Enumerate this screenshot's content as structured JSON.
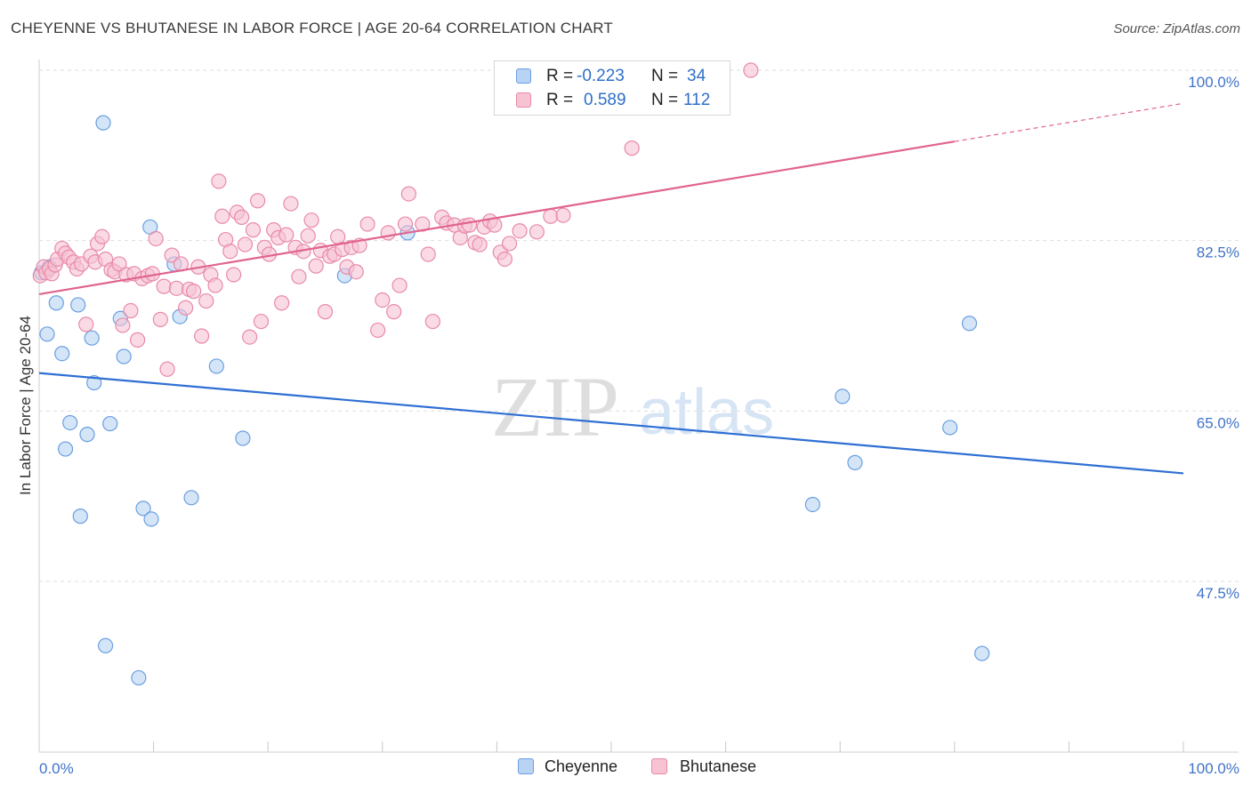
{
  "header": {
    "title": "CHEYENNE VS BHUTANESE IN LABOR FORCE | AGE 20-64 CORRELATION CHART",
    "source": "Source: ZipAtlas.com"
  },
  "watermark": {
    "zip": "ZIP",
    "atlas": "atlas"
  },
  "legend": {
    "cheyenne": {
      "r_label": "R =",
      "r_value": "-0.223",
      "n_label": "N =",
      "n_value": "34"
    },
    "bhutanese": {
      "r_label": "R =",
      "r_value": "0.589",
      "n_label": "N =",
      "n_value": "112"
    }
  },
  "bottom_legend": {
    "cheyenne": "Cheyenne",
    "bhutanese": "Bhutanese"
  },
  "colors": {
    "cheyenne_fill": "#b8d3f3",
    "cheyenne_stroke": "#6a9fe0",
    "cheyenne_line": "#2f6fd4",
    "bhutanese_fill": "#f7c3d3",
    "bhutanese_stroke": "#e88aa8",
    "bhutanese_line": "#e0648e",
    "axis_text": "#3f73c9"
  },
  "chart_data": {
    "type": "scatter",
    "title": "CHEYENNE VS BHUTANESE IN LABOR FORCE | AGE 20-64 CORRELATION CHART",
    "xlabel": "",
    "ylabel": "In Labor Force | Age 20-64",
    "xlim": [
      0,
      100
    ],
    "ylim": [
      30,
      102
    ],
    "x_tick_labels": [
      "0.0%",
      "100.0%"
    ],
    "y_ticks": [
      47.5,
      65.0,
      82.5,
      100.0
    ],
    "y_tick_labels": [
      "47.5%",
      "65.0%",
      "82.5%",
      "100.0%"
    ],
    "grid": true,
    "legend_position": "top-center",
    "series": [
      {
        "name": "Cheyenne",
        "R": -0.223,
        "N": 34,
        "trend": {
          "x0": 0,
          "y0": 68.9,
          "x1": 100,
          "y1": 58.6
        },
        "points": [
          {
            "x": 0.2,
            "y": 79.2
          },
          {
            "x": 0.7,
            "y": 72.9
          },
          {
            "x": 1.5,
            "y": 76.1
          },
          {
            "x": 2.0,
            "y": 70.9
          },
          {
            "x": 2.3,
            "y": 61.1
          },
          {
            "x": 2.7,
            "y": 63.8
          },
          {
            "x": 3.4,
            "y": 75.9
          },
          {
            "x": 3.6,
            "y": 54.2
          },
          {
            "x": 4.2,
            "y": 62.6
          },
          {
            "x": 4.6,
            "y": 72.5
          },
          {
            "x": 4.8,
            "y": 67.9
          },
          {
            "x": 5.6,
            "y": 94.6
          },
          {
            "x": 5.8,
            "y": 40.9
          },
          {
            "x": 6.2,
            "y": 63.7
          },
          {
            "x": 7.1,
            "y": 74.5
          },
          {
            "x": 7.4,
            "y": 70.6
          },
          {
            "x": 8.7,
            "y": 37.6
          },
          {
            "x": 9.1,
            "y": 55.0
          },
          {
            "x": 9.7,
            "y": 83.9
          },
          {
            "x": 9.8,
            "y": 53.9
          },
          {
            "x": 11.8,
            "y": 80.1
          },
          {
            "x": 12.3,
            "y": 74.7
          },
          {
            "x": 13.3,
            "y": 56.1
          },
          {
            "x": 15.5,
            "y": 69.6
          },
          {
            "x": 17.8,
            "y": 62.2
          },
          {
            "x": 26.7,
            "y": 78.9
          },
          {
            "x": 32.2,
            "y": 83.3
          },
          {
            "x": 0.9,
            "y": 79.8
          },
          {
            "x": 67.6,
            "y": 55.4
          },
          {
            "x": 70.2,
            "y": 66.5
          },
          {
            "x": 71.3,
            "y": 59.7
          },
          {
            "x": 79.6,
            "y": 63.3
          },
          {
            "x": 81.3,
            "y": 74.0
          },
          {
            "x": 82.4,
            "y": 40.1
          }
        ]
      },
      {
        "name": "Bhutanese",
        "R": 0.589,
        "N": 112,
        "trend": {
          "x0": 0,
          "y0": 77.0,
          "x1": 100,
          "y1": 96.6
        },
        "points": [
          {
            "x": 0.1,
            "y": 78.9
          },
          {
            "x": 0.4,
            "y": 79.8
          },
          {
            "x": 0.6,
            "y": 79.2
          },
          {
            "x": 0.9,
            "y": 79.6
          },
          {
            "x": 1.1,
            "y": 79.1
          },
          {
            "x": 1.4,
            "y": 80.0
          },
          {
            "x": 1.6,
            "y": 80.6
          },
          {
            "x": 2.0,
            "y": 81.7
          },
          {
            "x": 2.3,
            "y": 81.2
          },
          {
            "x": 2.6,
            "y": 80.8
          },
          {
            "x": 3.0,
            "y": 80.3
          },
          {
            "x": 3.3,
            "y": 79.6
          },
          {
            "x": 3.7,
            "y": 80.1
          },
          {
            "x": 4.1,
            "y": 73.9
          },
          {
            "x": 4.5,
            "y": 80.9
          },
          {
            "x": 4.9,
            "y": 80.3
          },
          {
            "x": 5.1,
            "y": 82.2
          },
          {
            "x": 5.5,
            "y": 82.9
          },
          {
            "x": 5.8,
            "y": 80.6
          },
          {
            "x": 6.3,
            "y": 79.5
          },
          {
            "x": 6.6,
            "y": 79.3
          },
          {
            "x": 7.0,
            "y": 80.1
          },
          {
            "x": 7.3,
            "y": 73.8
          },
          {
            "x": 7.6,
            "y": 79.0
          },
          {
            "x": 8.0,
            "y": 75.3
          },
          {
            "x": 8.3,
            "y": 79.1
          },
          {
            "x": 8.6,
            "y": 72.3
          },
          {
            "x": 9.0,
            "y": 78.6
          },
          {
            "x": 9.5,
            "y": 78.9
          },
          {
            "x": 9.9,
            "y": 79.1
          },
          {
            "x": 10.2,
            "y": 82.7
          },
          {
            "x": 10.6,
            "y": 74.4
          },
          {
            "x": 10.9,
            "y": 77.8
          },
          {
            "x": 11.2,
            "y": 69.3
          },
          {
            "x": 11.6,
            "y": 81.0
          },
          {
            "x": 12.0,
            "y": 77.6
          },
          {
            "x": 12.4,
            "y": 80.1
          },
          {
            "x": 12.8,
            "y": 75.6
          },
          {
            "x": 13.1,
            "y": 77.5
          },
          {
            "x": 13.5,
            "y": 77.3
          },
          {
            "x": 13.9,
            "y": 79.8
          },
          {
            "x": 14.2,
            "y": 72.7
          },
          {
            "x": 14.6,
            "y": 76.3
          },
          {
            "x": 15.0,
            "y": 79.0
          },
          {
            "x": 15.4,
            "y": 77.9
          },
          {
            "x": 15.7,
            "y": 88.6
          },
          {
            "x": 16.0,
            "y": 85.0
          },
          {
            "x": 16.3,
            "y": 82.6
          },
          {
            "x": 16.7,
            "y": 81.4
          },
          {
            "x": 17.0,
            "y": 79.0
          },
          {
            "x": 17.3,
            "y": 85.4
          },
          {
            "x": 17.7,
            "y": 84.9
          },
          {
            "x": 18.0,
            "y": 82.1
          },
          {
            "x": 18.4,
            "y": 72.6
          },
          {
            "x": 18.7,
            "y": 83.6
          },
          {
            "x": 19.1,
            "y": 86.6
          },
          {
            "x": 19.4,
            "y": 74.2
          },
          {
            "x": 19.7,
            "y": 81.8
          },
          {
            "x": 20.1,
            "y": 81.1
          },
          {
            "x": 20.5,
            "y": 83.6
          },
          {
            "x": 20.9,
            "y": 82.8
          },
          {
            "x": 21.2,
            "y": 76.1
          },
          {
            "x": 21.6,
            "y": 83.1
          },
          {
            "x": 22.0,
            "y": 86.3
          },
          {
            "x": 22.4,
            "y": 81.8
          },
          {
            "x": 22.7,
            "y": 78.8
          },
          {
            "x": 23.1,
            "y": 81.4
          },
          {
            "x": 23.5,
            "y": 83.0
          },
          {
            "x": 23.8,
            "y": 84.6
          },
          {
            "x": 24.2,
            "y": 79.9
          },
          {
            "x": 24.6,
            "y": 81.5
          },
          {
            "x": 25.0,
            "y": 75.2
          },
          {
            "x": 25.4,
            "y": 80.9
          },
          {
            "x": 25.8,
            "y": 81.1
          },
          {
            "x": 26.1,
            "y": 82.9
          },
          {
            "x": 26.5,
            "y": 81.6
          },
          {
            "x": 26.9,
            "y": 79.8
          },
          {
            "x": 27.3,
            "y": 81.8
          },
          {
            "x": 27.7,
            "y": 79.3
          },
          {
            "x": 28.0,
            "y": 82.0
          },
          {
            "x": 28.7,
            "y": 84.2
          },
          {
            "x": 29.6,
            "y": 73.3
          },
          {
            "x": 30.0,
            "y": 76.4
          },
          {
            "x": 30.5,
            "y": 83.3
          },
          {
            "x": 31.0,
            "y": 75.2
          },
          {
            "x": 31.5,
            "y": 77.9
          },
          {
            "x": 32.0,
            "y": 84.2
          },
          {
            "x": 32.3,
            "y": 87.3
          },
          {
            "x": 33.5,
            "y": 84.2
          },
          {
            "x": 34.0,
            "y": 81.1
          },
          {
            "x": 34.4,
            "y": 74.2
          },
          {
            "x": 35.2,
            "y": 84.9
          },
          {
            "x": 35.6,
            "y": 84.3
          },
          {
            "x": 36.3,
            "y": 84.1
          },
          {
            "x": 36.8,
            "y": 82.8
          },
          {
            "x": 37.2,
            "y": 84.0
          },
          {
            "x": 37.6,
            "y": 84.1
          },
          {
            "x": 38.1,
            "y": 82.3
          },
          {
            "x": 38.5,
            "y": 82.1
          },
          {
            "x": 38.9,
            "y": 83.9
          },
          {
            "x": 39.4,
            "y": 84.5
          },
          {
            "x": 39.8,
            "y": 84.1
          },
          {
            "x": 40.3,
            "y": 81.3
          },
          {
            "x": 40.7,
            "y": 80.6
          },
          {
            "x": 41.1,
            "y": 82.2
          },
          {
            "x": 42.0,
            "y": 83.5
          },
          {
            "x": 43.5,
            "y": 83.4
          },
          {
            "x": 44.7,
            "y": 85.0
          },
          {
            "x": 45.8,
            "y": 85.1
          },
          {
            "x": 51.8,
            "y": 92.0
          },
          {
            "x": 57.9,
            "y": 100.0
          },
          {
            "x": 62.2,
            "y": 100.0
          }
        ]
      }
    ]
  }
}
